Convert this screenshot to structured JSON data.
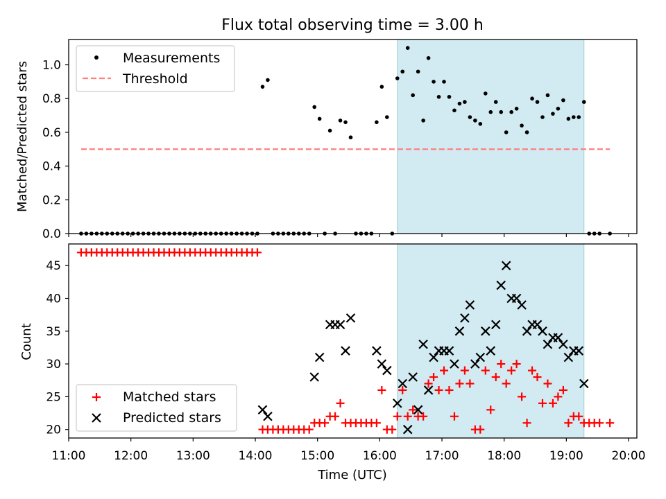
{
  "chart_data": [
    {
      "type": "scatter",
      "title": "Flux total observing time = 3.00 h",
      "xlabel": "",
      "ylabel": "Matched/Predicted stars",
      "ylim": [
        0,
        1.15
      ],
      "xlim": [
        "11:00",
        "20:08"
      ],
      "yticks": [
        "0.0",
        "0.2",
        "0.4",
        "0.6",
        "0.8",
        "1.0"
      ],
      "grid": false,
      "legend_position": "top-left",
      "highlight_span": {
        "start": "16:17",
        "end": "19:17",
        "color": "#add8e6"
      },
      "threshold": {
        "name": "Threshold",
        "value": 0.5,
        "x_start": "11:12",
        "x_end": "19:42",
        "color": "#ff7f7f",
        "style": "dashed"
      },
      "series": [
        {
          "name": "Measurements",
          "color": "#000000",
          "points": [
            [
              "11:12",
              0
            ],
            [
              "11:17",
              0
            ],
            [
              "11:22",
              0
            ],
            [
              "11:27",
              0
            ],
            [
              "11:32",
              0
            ],
            [
              "11:37",
              0
            ],
            [
              "11:42",
              0
            ],
            [
              "11:47",
              0
            ],
            [
              "11:52",
              0
            ],
            [
              "11:57",
              0
            ],
            [
              "12:02",
              0
            ],
            [
              "12:07",
              0
            ],
            [
              "12:12",
              0
            ],
            [
              "12:17",
              0
            ],
            [
              "12:22",
              0
            ],
            [
              "12:27",
              0
            ],
            [
              "12:32",
              0
            ],
            [
              "12:37",
              0
            ],
            [
              "12:42",
              0
            ],
            [
              "12:47",
              0
            ],
            [
              "12:52",
              0
            ],
            [
              "12:57",
              0
            ],
            [
              "13:02",
              0
            ],
            [
              "13:07",
              0
            ],
            [
              "13:12",
              0
            ],
            [
              "13:17",
              0
            ],
            [
              "13:22",
              0
            ],
            [
              "13:27",
              0
            ],
            [
              "13:32",
              0
            ],
            [
              "13:37",
              0
            ],
            [
              "13:42",
              0
            ],
            [
              "13:47",
              0
            ],
            [
              "13:52",
              0
            ],
            [
              "13:57",
              0
            ],
            [
              "14:02",
              0
            ],
            [
              "14:07",
              0.87
            ],
            [
              "14:12",
              0.91
            ],
            [
              "14:17",
              0
            ],
            [
              "14:22",
              0
            ],
            [
              "14:27",
              0
            ],
            [
              "14:32",
              0
            ],
            [
              "14:37",
              0
            ],
            [
              "14:42",
              0
            ],
            [
              "14:47",
              0
            ],
            [
              "14:52",
              0
            ],
            [
              "14:57",
              0.75
            ],
            [
              "15:02",
              0.68
            ],
            [
              "15:07",
              0
            ],
            [
              "15:12",
              0.61
            ],
            [
              "15:17",
              0
            ],
            [
              "15:22",
              0.67
            ],
            [
              "15:27",
              0.66
            ],
            [
              "15:32",
              0.57
            ],
            [
              "15:37",
              0
            ],
            [
              "15:42",
              0
            ],
            [
              "15:47",
              0
            ],
            [
              "15:52",
              0
            ],
            [
              "15:57",
              0.66
            ],
            [
              "16:02",
              0.87
            ],
            [
              "16:07",
              0.69
            ],
            [
              "16:12",
              0
            ],
            [
              "16:17",
              0.92
            ],
            [
              "16:22",
              0.96
            ],
            [
              "16:27",
              1.1
            ],
            [
              "16:32",
              0.82
            ],
            [
              "16:37",
              0.96
            ],
            [
              "16:42",
              0.67
            ],
            [
              "16:47",
              1.04
            ],
            [
              "16:52",
              0.9
            ],
            [
              "16:57",
              0.81
            ],
            [
              "17:02",
              0.9
            ],
            [
              "17:07",
              0.81
            ],
            [
              "17:12",
              0.73
            ],
            [
              "17:17",
              0.77
            ],
            [
              "17:22",
              0.78
            ],
            [
              "17:27",
              0.69
            ],
            [
              "17:32",
              0.67
            ],
            [
              "17:37",
              0.65
            ],
            [
              "17:42",
              0.83
            ],
            [
              "17:47",
              0.72
            ],
            [
              "17:52",
              0.78
            ],
            [
              "17:57",
              0.72
            ],
            [
              "18:02",
              0.6
            ],
            [
              "18:07",
              0.72
            ],
            [
              "18:12",
              0.74
            ],
            [
              "18:17",
              0.64
            ],
            [
              "18:22",
              0.6
            ],
            [
              "18:27",
              0.8
            ],
            [
              "18:32",
              0.78
            ],
            [
              "18:37",
              0.69
            ],
            [
              "18:42",
              0.82
            ],
            [
              "18:47",
              0.71
            ],
            [
              "18:52",
              0.74
            ],
            [
              "18:57",
              0.79
            ],
            [
              "19:02",
              0.68
            ],
            [
              "19:07",
              0.69
            ],
            [
              "19:12",
              0.69
            ],
            [
              "19:17",
              0.78
            ],
            [
              "19:22",
              0
            ],
            [
              "19:27",
              0
            ],
            [
              "19:32",
              0
            ],
            [
              "19:42",
              0
            ]
          ]
        }
      ]
    },
    {
      "type": "scatter",
      "title": "",
      "xlabel": "Time (UTC)",
      "ylabel": "Count",
      "ylim": [
        18.7,
        48.3
      ],
      "xlim": [
        "11:00",
        "20:08"
      ],
      "yticks": [
        "20",
        "25",
        "30",
        "35",
        "40",
        "45"
      ],
      "xticks": [
        "11:00",
        "12:00",
        "13:00",
        "14:00",
        "15:00",
        "16:00",
        "17:00",
        "18:00",
        "19:00",
        "20:00"
      ],
      "grid": false,
      "legend_position": "bottom-left",
      "highlight_span": {
        "start": "16:17",
        "end": "19:17",
        "color": "#add8e6"
      },
      "series": [
        {
          "name": "Matched stars",
          "marker": "plus",
          "color": "#ff0000",
          "points": [
            [
              "11:12",
              47
            ],
            [
              "11:17",
              47
            ],
            [
              "11:22",
              47
            ],
            [
              "11:27",
              47
            ],
            [
              "11:32",
              47
            ],
            [
              "11:37",
              47
            ],
            [
              "11:42",
              47
            ],
            [
              "11:47",
              47
            ],
            [
              "11:52",
              47
            ],
            [
              "11:57",
              47
            ],
            [
              "12:02",
              47
            ],
            [
              "12:07",
              47
            ],
            [
              "12:12",
              47
            ],
            [
              "12:17",
              47
            ],
            [
              "12:22",
              47
            ],
            [
              "12:27",
              47
            ],
            [
              "12:32",
              47
            ],
            [
              "12:37",
              47
            ],
            [
              "12:42",
              47
            ],
            [
              "12:47",
              47
            ],
            [
              "12:52",
              47
            ],
            [
              "12:57",
              47
            ],
            [
              "13:02",
              47
            ],
            [
              "13:07",
              47
            ],
            [
              "13:12",
              47
            ],
            [
              "13:17",
              47
            ],
            [
              "13:22",
              47
            ],
            [
              "13:27",
              47
            ],
            [
              "13:32",
              47
            ],
            [
              "13:37",
              47
            ],
            [
              "13:42",
              47
            ],
            [
              "13:47",
              47
            ],
            [
              "13:52",
              47
            ],
            [
              "13:57",
              47
            ],
            [
              "14:02",
              47
            ],
            [
              "14:07",
              20
            ],
            [
              "14:12",
              20
            ],
            [
              "14:17",
              20
            ],
            [
              "14:22",
              20
            ],
            [
              "14:27",
              20
            ],
            [
              "14:32",
              20
            ],
            [
              "14:37",
              20
            ],
            [
              "14:42",
              20
            ],
            [
              "14:47",
              20
            ],
            [
              "14:52",
              20
            ],
            [
              "14:57",
              21
            ],
            [
              "15:02",
              21
            ],
            [
              "15:07",
              21
            ],
            [
              "15:12",
              22
            ],
            [
              "15:17",
              22
            ],
            [
              "15:22",
              24
            ],
            [
              "15:27",
              21
            ],
            [
              "15:32",
              21
            ],
            [
              "15:37",
              21
            ],
            [
              "15:42",
              21
            ],
            [
              "15:47",
              21
            ],
            [
              "15:52",
              21
            ],
            [
              "15:57",
              21
            ],
            [
              "16:02",
              26
            ],
            [
              "16:07",
              20
            ],
            [
              "16:12",
              20
            ],
            [
              "16:17",
              22
            ],
            [
              "16:22",
              26
            ],
            [
              "16:27",
              22
            ],
            [
              "16:32",
              23
            ],
            [
              "16:37",
              22
            ],
            [
              "16:42",
              22
            ],
            [
              "16:47",
              27
            ],
            [
              "16:52",
              28
            ],
            [
              "16:57",
              26
            ],
            [
              "17:02",
              29
            ],
            [
              "17:07",
              26
            ],
            [
              "17:12",
              22
            ],
            [
              "17:17",
              27
            ],
            [
              "17:22",
              29
            ],
            [
              "17:27",
              27
            ],
            [
              "17:32",
              20
            ],
            [
              "17:37",
              20
            ],
            [
              "17:42",
              29
            ],
            [
              "17:47",
              23
            ],
            [
              "17:52",
              28
            ],
            [
              "17:57",
              30
            ],
            [
              "18:02",
              27
            ],
            [
              "18:07",
              29
            ],
            [
              "18:12",
              30
            ],
            [
              "18:17",
              25
            ],
            [
              "18:22",
              21
            ],
            [
              "18:27",
              29
            ],
            [
              "18:32",
              28
            ],
            [
              "18:37",
              24
            ],
            [
              "18:42",
              27
            ],
            [
              "18:47",
              24
            ],
            [
              "18:52",
              25
            ],
            [
              "18:57",
              26
            ],
            [
              "19:02",
              21
            ],
            [
              "19:07",
              22
            ],
            [
              "19:12",
              22
            ],
            [
              "19:17",
              21
            ],
            [
              "19:22",
              21
            ],
            [
              "19:27",
              21
            ],
            [
              "19:32",
              21
            ],
            [
              "19:42",
              21
            ]
          ]
        },
        {
          "name": "Predicted stars",
          "marker": "x",
          "color": "#000000",
          "points": [
            [
              "14:07",
              23
            ],
            [
              "14:12",
              22
            ],
            [
              "14:57",
              28
            ],
            [
              "15:02",
              31
            ],
            [
              "15:12",
              36
            ],
            [
              "15:17",
              36
            ],
            [
              "15:22",
              36
            ],
            [
              "15:27",
              32
            ],
            [
              "15:32",
              37
            ],
            [
              "15:57",
              32
            ],
            [
              "16:02",
              30
            ],
            [
              "16:07",
              29
            ],
            [
              "16:17",
              24
            ],
            [
              "16:22",
              27
            ],
            [
              "16:27",
              20
            ],
            [
              "16:32",
              28
            ],
            [
              "16:37",
              23
            ],
            [
              "16:42",
              33
            ],
            [
              "16:47",
              26
            ],
            [
              "16:52",
              31
            ],
            [
              "16:57",
              32
            ],
            [
              "17:02",
              32
            ],
            [
              "17:07",
              32
            ],
            [
              "17:12",
              30
            ],
            [
              "17:17",
              35
            ],
            [
              "17:22",
              37
            ],
            [
              "17:27",
              39
            ],
            [
              "17:32",
              30
            ],
            [
              "17:37",
              31
            ],
            [
              "17:42",
              35
            ],
            [
              "17:47",
              32
            ],
            [
              "17:52",
              36
            ],
            [
              "17:57",
              42
            ],
            [
              "18:02",
              45
            ],
            [
              "18:07",
              40
            ],
            [
              "18:12",
              40
            ],
            [
              "18:17",
              39
            ],
            [
              "18:22",
              35
            ],
            [
              "18:27",
              36
            ],
            [
              "18:32",
              36
            ],
            [
              "18:37",
              35
            ],
            [
              "18:42",
              33
            ],
            [
              "18:47",
              34
            ],
            [
              "18:52",
              34
            ],
            [
              "18:57",
              33
            ],
            [
              "19:02",
              31
            ],
            [
              "19:07",
              32
            ],
            [
              "19:12",
              32
            ],
            [
              "19:17",
              27
            ]
          ]
        }
      ]
    }
  ]
}
